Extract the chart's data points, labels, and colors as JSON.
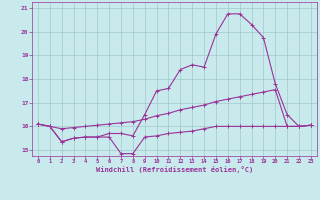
{
  "xlabel": "Windchill (Refroidissement éolien,°C)",
  "bg_color": "#c8eaec",
  "line_color": "#993399",
  "grid_color": "#a0c8cc",
  "xlim": [
    -0.5,
    23.5
  ],
  "ylim": [
    14.75,
    21.25
  ],
  "xticks": [
    0,
    1,
    2,
    3,
    4,
    5,
    6,
    7,
    8,
    9,
    10,
    11,
    12,
    13,
    14,
    15,
    16,
    17,
    18,
    19,
    20,
    21,
    22,
    23
  ],
  "yticks": [
    15,
    16,
    17,
    18,
    19,
    20,
    21
  ],
  "line1_x": [
    0,
    1,
    2,
    3,
    4,
    5,
    6,
    7,
    8,
    9,
    10,
    11,
    12,
    13,
    14,
    15,
    16,
    17,
    18,
    19,
    20,
    21,
    22,
    23
  ],
  "line1_y": [
    16.1,
    16.0,
    15.35,
    15.5,
    15.55,
    15.55,
    15.55,
    14.85,
    14.85,
    15.55,
    15.6,
    15.7,
    15.75,
    15.8,
    15.9,
    16.0,
    16.0,
    16.0,
    16.0,
    16.0,
    16.0,
    16.0,
    16.0,
    16.05
  ],
  "line2_x": [
    0,
    1,
    2,
    3,
    4,
    5,
    6,
    7,
    8,
    9,
    10,
    11,
    12,
    13,
    14,
    15,
    16,
    17,
    18,
    19,
    20,
    21,
    22,
    23
  ],
  "line2_y": [
    16.1,
    16.0,
    15.35,
    15.5,
    15.55,
    15.55,
    15.7,
    15.7,
    15.6,
    16.5,
    17.5,
    17.6,
    18.4,
    18.6,
    18.5,
    19.9,
    20.75,
    20.75,
    20.3,
    19.75,
    17.8,
    16.5,
    16.0,
    16.05
  ],
  "line3_x": [
    0,
    1,
    2,
    3,
    4,
    5,
    6,
    7,
    8,
    9,
    10,
    11,
    12,
    13,
    14,
    15,
    16,
    17,
    18,
    19,
    20,
    21,
    22,
    23
  ],
  "line3_y": [
    16.1,
    16.0,
    15.9,
    15.95,
    16.0,
    16.05,
    16.1,
    16.15,
    16.2,
    16.3,
    16.45,
    16.55,
    16.7,
    16.8,
    16.9,
    17.05,
    17.15,
    17.25,
    17.35,
    17.45,
    17.55,
    16.0,
    16.0,
    16.05
  ],
  "markersize": 3,
  "linewidth": 0.8
}
